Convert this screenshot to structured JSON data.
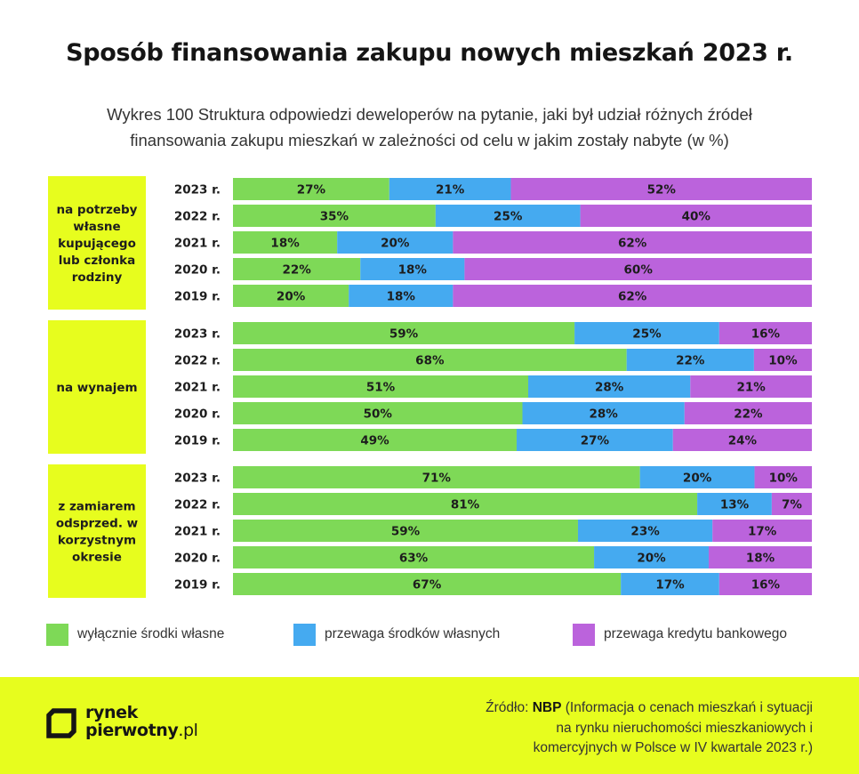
{
  "title": "Sposób finansowania zakupu nowych mieszkań 2023 r.",
  "subtitle_line1": "Wykres 100 Struktura odpowiedzi deweloperów na pytanie, jaki był udział różnych źródeł",
  "subtitle_line2": "finansowania zakupu mieszkań w zależności od celu w jakim zostały nabyte (w %)",
  "colors": {
    "green": "#7ed957",
    "blue": "#45aaf0",
    "purple": "#bb63dc",
    "group_bg": "#e7fd1e"
  },
  "chart_data": {
    "type": "bar",
    "orientation": "horizontal",
    "stacked": true,
    "normalized_percent": true,
    "unit": "%",
    "series_names": [
      "wyłącznie środki własne",
      "przewaga środków własnych",
      "przewaga kredytu bankowego"
    ],
    "groups": [
      {
        "label_lines": [
          "na potrzeby",
          "własne",
          "kupującego",
          "lub członka",
          "rodziny"
        ],
        "rows": [
          {
            "year": "2023 r.",
            "values": [
              27,
              21,
              52
            ]
          },
          {
            "year": "2022 r.",
            "values": [
              35,
              25,
              40
            ]
          },
          {
            "year": "2021 r.",
            "values": [
              18,
              20,
              62
            ]
          },
          {
            "year": "2020 r.",
            "values": [
              22,
              18,
              60
            ]
          },
          {
            "year": "2019 r.",
            "values": [
              20,
              18,
              62
            ]
          }
        ]
      },
      {
        "label_lines": [
          "na wynajem"
        ],
        "rows": [
          {
            "year": "2023 r.",
            "values": [
              59,
              25,
              16
            ]
          },
          {
            "year": "2022 r.",
            "values": [
              68,
              22,
              10
            ]
          },
          {
            "year": "2021 r.",
            "values": [
              51,
              28,
              21
            ]
          },
          {
            "year": "2020 r.",
            "values": [
              50,
              28,
              22
            ]
          },
          {
            "year": "2019 r.",
            "values": [
              49,
              27,
              24
            ]
          }
        ]
      },
      {
        "label_lines": [
          "z zamiarem",
          "odsprzed. w",
          "korzystnym",
          "okresie"
        ],
        "rows": [
          {
            "year": "2023 r.",
            "values": [
              71,
              20,
              10
            ]
          },
          {
            "year": "2022 r.",
            "values": [
              81,
              13,
              7
            ]
          },
          {
            "year": "2021 r.",
            "values": [
              59,
              23,
              17
            ]
          },
          {
            "year": "2020 r.",
            "values": [
              63,
              20,
              18
            ]
          },
          {
            "year": "2019 r.",
            "values": [
              67,
              17,
              16
            ]
          }
        ]
      }
    ]
  },
  "legend": [
    {
      "label": "wyłącznie środki własne",
      "color": "#7ed957"
    },
    {
      "label": "przewaga środków własnych",
      "color": "#45aaf0"
    },
    {
      "label": "przewaga kredytu bankowego",
      "color": "#bb63dc"
    }
  ],
  "footer": {
    "logo_line1": "rynek",
    "logo_line2_bold": "pierwotny",
    "logo_line2_thin": ".pl",
    "source_prefix": "Źródło: ",
    "source_bold": "NBP",
    "source_line1_rest": " (Informacja o cenach mieszkań i sytuacji",
    "source_line2": "na rynku nieruchomości mieszkaniowych i",
    "source_line3": "komercyjnych w Polsce w IV kwartale 2023 r.)"
  }
}
